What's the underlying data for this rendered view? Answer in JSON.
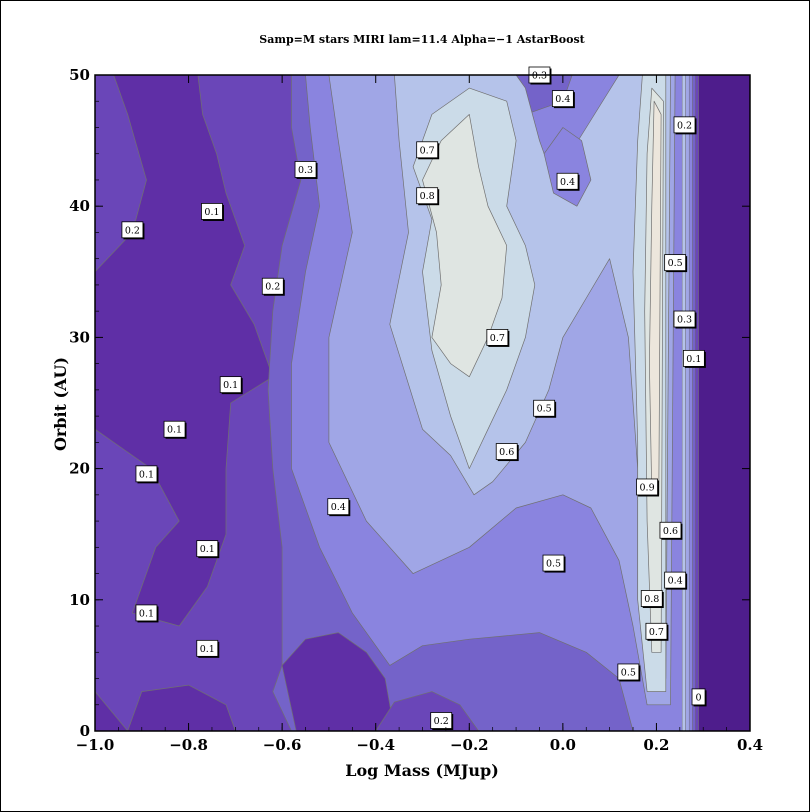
{
  "chart_data": {
    "type": "contour",
    "title": "Samp=M stars MIRI lam=11.4 Alpha=−1 AstarBoost",
    "xlabel": "Log Mass (MJup)",
    "ylabel": "Orbit (AU)",
    "xlim": [
      -1.0,
      0.4
    ],
    "ylim": [
      0,
      50
    ],
    "x_ticks": [
      -1.0,
      -0.8,
      -0.6,
      -0.4,
      -0.2,
      0.0,
      0.2,
      0.4
    ],
    "x_tick_labels": [
      "−1.0",
      "−0.8",
      "−0.6",
      "−0.4",
      "−0.2",
      "0.0",
      "0.2",
      "0.4"
    ],
    "y_ticks": [
      0,
      10,
      20,
      30,
      40,
      50
    ],
    "y_tick_labels": [
      "0",
      "10",
      "20",
      "30",
      "40",
      "50"
    ],
    "levels": [
      0,
      0.1,
      0.2,
      0.3,
      0.4,
      0.5,
      0.6,
      0.7,
      0.8,
      0.9
    ],
    "colors": {
      "0": "#4e1d8c",
      "0.1": "#5f2fa6",
      "0.2": "#6a46b8",
      "0.3": "#7463c9",
      "0.4": "#8a84df",
      "0.5": "#a0a6e6",
      "0.6": "#b5c3ea",
      "0.7": "#cbdbe8",
      "0.8": "#dfe5e2",
      "0.9": "#ece6dc"
    },
    "contour_labels": [
      {
        "text": "0.3",
        "x": -0.05,
        "y": 50.0
      },
      {
        "text": "0.4",
        "x": 0.0,
        "y": 48.2
      },
      {
        "text": "0.2",
        "x": 0.26,
        "y": 46.2
      },
      {
        "text": "0.7",
        "x": -0.29,
        "y": 44.3
      },
      {
        "text": "0.3",
        "x": -0.55,
        "y": 42.8
      },
      {
        "text": "0.4",
        "x": 0.01,
        "y": 41.9
      },
      {
        "text": "0.8",
        "x": -0.29,
        "y": 40.8
      },
      {
        "text": "0.1",
        "x": -0.75,
        "y": 39.6
      },
      {
        "text": "0.2",
        "x": -0.92,
        "y": 38.2
      },
      {
        "text": "0.5",
        "x": 0.24,
        "y": 35.7
      },
      {
        "text": "0.2",
        "x": -0.62,
        "y": 33.9
      },
      {
        "text": "0.3",
        "x": 0.26,
        "y": 31.4
      },
      {
        "text": "0.7",
        "x": -0.14,
        "y": 30.0
      },
      {
        "text": "0.1",
        "x": 0.28,
        "y": 28.4
      },
      {
        "text": "0.1",
        "x": -0.71,
        "y": 26.4
      },
      {
        "text": "0.5",
        "x": -0.04,
        "y": 24.6
      },
      {
        "text": "0.1",
        "x": -0.83,
        "y": 23.0
      },
      {
        "text": "0.6",
        "x": -0.12,
        "y": 21.3
      },
      {
        "text": "0.1",
        "x": -0.89,
        "y": 19.6
      },
      {
        "text": "0.9",
        "x": 0.18,
        "y": 18.6
      },
      {
        "text": "0.4",
        "x": -0.48,
        "y": 17.1
      },
      {
        "text": "0.6",
        "x": 0.23,
        "y": 15.3
      },
      {
        "text": "0.1",
        "x": -0.76,
        "y": 13.9
      },
      {
        "text": "0.5",
        "x": -0.02,
        "y": 12.8
      },
      {
        "text": "0.4",
        "x": 0.24,
        "y": 11.5
      },
      {
        "text": "0.8",
        "x": 0.19,
        "y": 10.1
      },
      {
        "text": "0.1",
        "x": -0.89,
        "y": 9.0
      },
      {
        "text": "0.7",
        "x": 0.2,
        "y": 7.6
      },
      {
        "text": "0.1",
        "x": -0.76,
        "y": 6.3
      },
      {
        "text": "0.5",
        "x": 0.14,
        "y": 4.5
      },
      {
        "text": "0",
        "x": 0.29,
        "y": 2.6
      },
      {
        "text": "0.2",
        "x": -0.26,
        "y": 0.8
      }
    ]
  }
}
